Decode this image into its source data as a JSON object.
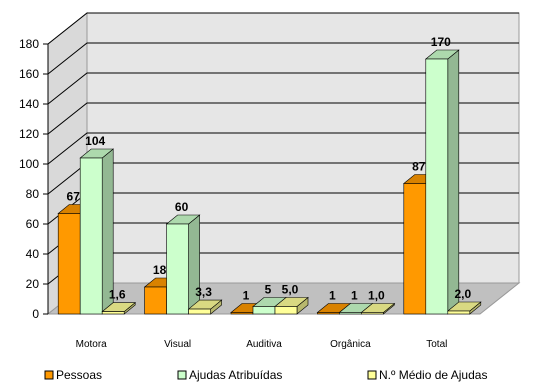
{
  "chart_data": {
    "type": "bar",
    "title": "",
    "xlabel": "",
    "ylabel": "",
    "ylim": [
      0,
      180
    ],
    "yticks": [
      "0",
      "20",
      "40",
      "60",
      "80",
      "100",
      "120",
      "140",
      "160",
      "180"
    ],
    "categories": [
      "Motora",
      "Visual",
      "Auditiva",
      "Orgânica",
      "Total"
    ],
    "series": [
      {
        "name": "Pessoas",
        "values": [
          67,
          18,
          1,
          1,
          87
        ],
        "labels": [
          "67",
          "18",
          "1",
          "1",
          "87"
        ],
        "color": "#FF9900"
      },
      {
        "name": "Ajudas Atribuídas",
        "values": [
          104,
          60,
          5,
          1,
          170
        ],
        "labels": [
          "104",
          "60",
          "5",
          "1",
          "170"
        ],
        "color": "#CCFFCC"
      },
      {
        "name": "N.º Médio de Ajudas",
        "values": [
          1.6,
          3.3,
          5.0,
          1.0,
          2.0
        ],
        "labels": [
          "1,6",
          "3,3",
          "5,0",
          "1,0",
          "2,0"
        ],
        "color": "#FFFF99"
      }
    ],
    "grid": true,
    "legend_position": "bottom"
  }
}
